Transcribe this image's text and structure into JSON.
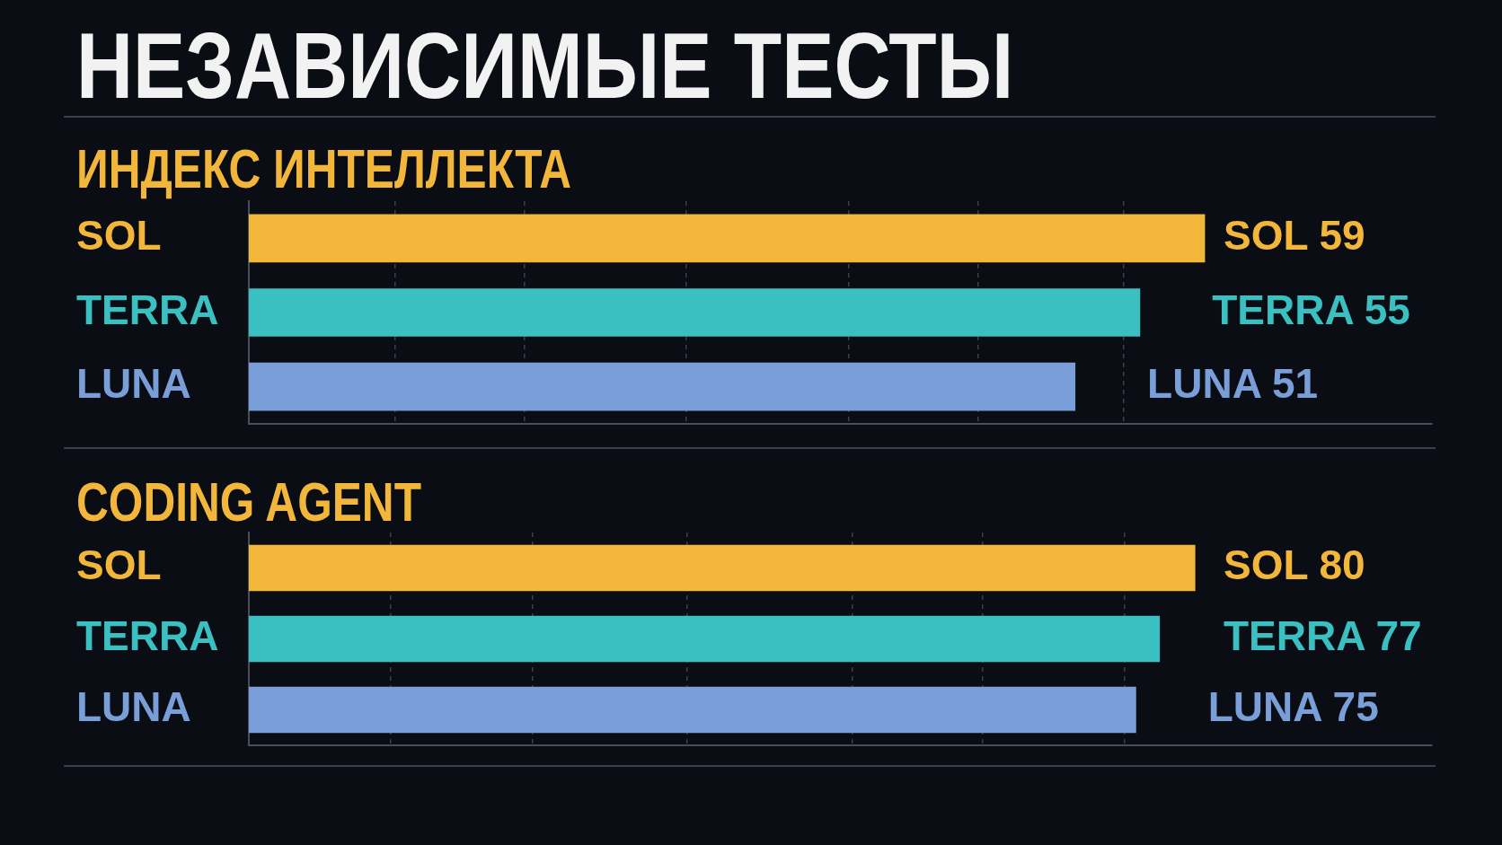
{
  "chart_data": [
    {
      "type": "bar",
      "orientation": "horizontal",
      "title": "НЕЗАВИСИМЫЕ ТЕСТЫ",
      "subtitle": "ИНДЕКС ИНТЕЛЛЕКТА",
      "categories": [
        "SOL",
        "TERRA",
        "LUNA"
      ],
      "values": [
        59,
        55,
        51
      ],
      "colors": [
        "#f2b63a",
        "#3bc0c1",
        "#7a9fd8"
      ],
      "value_labels": [
        "SOL 59",
        "TERRA 55",
        "LUNA 51"
      ],
      "xlim": [
        0,
        73
      ],
      "xticks": [
        {
          "value": 9,
          "label": null
        },
        {
          "value": 17,
          "label": null
        },
        {
          "value": 27,
          "label": null
        },
        {
          "value": 37,
          "label": null
        },
        {
          "value": 45,
          "label": null
        },
        {
          "value": 54,
          "label": null
        }
      ],
      "grid": "x",
      "tick_labels": "y"
    },
    {
      "type": "bar",
      "orientation": "horizontal",
      "title": "CODING AGENT",
      "categories": [
        "SOL",
        "TERRA",
        "LUNA"
      ],
      "values": [
        80,
        77,
        75
      ],
      "colors": [
        "#f2b63a",
        "#3bc0c1",
        "#7a9fd8"
      ],
      "value_labels": [
        "SOL 80",
        "TERRA 77",
        "LUNA 75"
      ],
      "xlim": [
        0,
        100
      ],
      "xticks": [
        {
          "value": 12,
          "label": null
        },
        {
          "value": 24,
          "label": null
        },
        {
          "value": 37,
          "label": null
        },
        {
          "value": 51,
          "label": null
        },
        {
          "value": 62,
          "label": null
        },
        {
          "value": 74,
          "label": null
        }
      ],
      "grid": "x",
      "tick_labels": "y"
    }
  ]
}
